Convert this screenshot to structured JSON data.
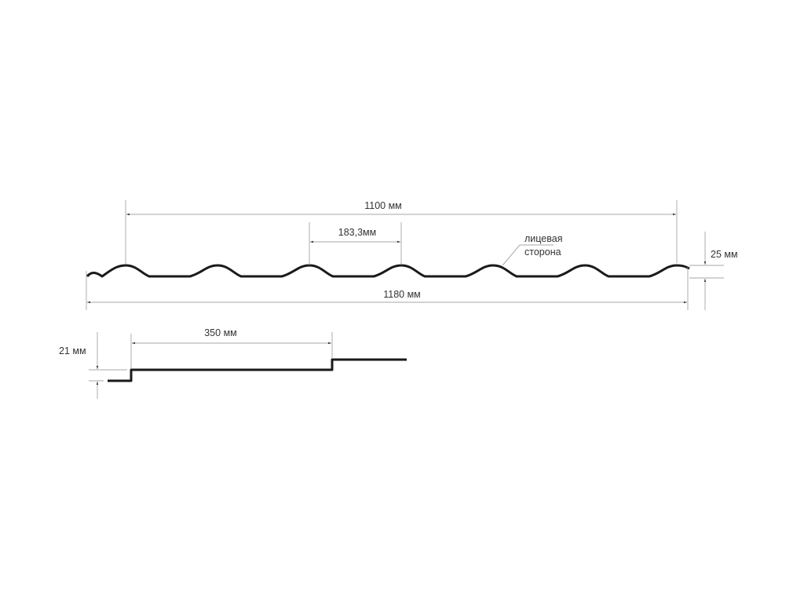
{
  "top_profile": {
    "overall_width": "1100 мм",
    "wave_step": "183,3мм",
    "total_width": "1180 мм",
    "wave_height": "25 мм",
    "face_side_line1": "лицевая",
    "face_side_line2": "сторона"
  },
  "side_profile": {
    "step_length": "350 мм",
    "step_height": "21 мм"
  },
  "colors": {
    "profile": "#1a1a1a",
    "dimension": "#8a8a8a"
  }
}
